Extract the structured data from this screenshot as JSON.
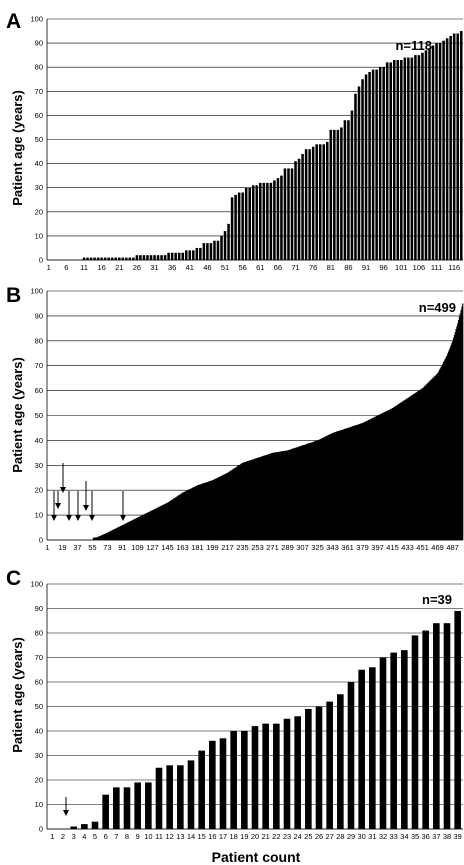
{
  "chart_data": [
    {
      "type": "bar",
      "panel": "A",
      "n_label": "n=118",
      "ylabel": "Patient age (years)",
      "ylim": [
        0,
        100
      ],
      "yticks": [
        0,
        10,
        20,
        30,
        40,
        50,
        60,
        70,
        80,
        90,
        100
      ],
      "xtick_labels": [
        "1",
        "6",
        "11",
        "16",
        "21",
        "26",
        "31",
        "36",
        "41",
        "46",
        "51",
        "56",
        "61",
        "66",
        "71",
        "76",
        "81",
        "86",
        "91",
        "96",
        "101",
        "106",
        "111",
        "116"
      ],
      "grid": true,
      "values": [
        0,
        0,
        0,
        0,
        0,
        0,
        0,
        0,
        0,
        0,
        1,
        1,
        1,
        1,
        1,
        1,
        1,
        1,
        1,
        1,
        1,
        1,
        1,
        1,
        1,
        2,
        2,
        2,
        2,
        2,
        2,
        2,
        2,
        2,
        3,
        3,
        3,
        3,
        3,
        4,
        4,
        4,
        5,
        5,
        7,
        7,
        7,
        8,
        8,
        10,
        12,
        15,
        26,
        27,
        28,
        28,
        30,
        30,
        31,
        31,
        32,
        32,
        32,
        32,
        33,
        34,
        35,
        38,
        38,
        38,
        41,
        42,
        44,
        46,
        46,
        47,
        48,
        48,
        48,
        49,
        54,
        54,
        54,
        55,
        58,
        58,
        62,
        69,
        72,
        75,
        77,
        78,
        79,
        79,
        80,
        80,
        82,
        82,
        83,
        83,
        83,
        84,
        84,
        84,
        85,
        85,
        86,
        87,
        88,
        89,
        90,
        90,
        91,
        92,
        93,
        94,
        94,
        95
      ]
    },
    {
      "type": "bar",
      "panel": "B",
      "n_label": "n=499",
      "ylabel": "Patient age (years)",
      "ylim": [
        0,
        100
      ],
      "yticks": [
        0,
        10,
        20,
        30,
        40,
        50,
        60,
        70,
        80,
        90,
        100
      ],
      "xtick_labels": [
        "1",
        "19",
        "37",
        "55",
        "73",
        "91",
        "109",
        "127",
        "145",
        "163",
        "181",
        "199",
        "217",
        "235",
        "253",
        "271",
        "289",
        "307",
        "325",
        "343",
        "361",
        "379",
        "397",
        "415",
        "433",
        "451",
        "469",
        "487"
      ],
      "grid": true,
      "annotations": "arrows marking patients aged 0",
      "values_curve": [
        [
          1,
          0
        ],
        [
          60,
          1
        ],
        [
          73,
          3
        ],
        [
          91,
          6
        ],
        [
          109,
          9
        ],
        [
          127,
          12
        ],
        [
          145,
          15
        ],
        [
          163,
          19
        ],
        [
          181,
          22
        ],
        [
          199,
          24
        ],
        [
          217,
          27
        ],
        [
          235,
          31
        ],
        [
          253,
          33
        ],
        [
          271,
          35
        ],
        [
          289,
          36
        ],
        [
          307,
          38
        ],
        [
          325,
          40
        ],
        [
          343,
          43
        ],
        [
          361,
          45
        ],
        [
          379,
          47
        ],
        [
          397,
          50
        ],
        [
          415,
          53
        ],
        [
          433,
          57
        ],
        [
          451,
          61
        ],
        [
          469,
          67
        ],
        [
          480,
          74
        ],
        [
          487,
          80
        ],
        [
          493,
          87
        ],
        [
          499,
          95
        ]
      ]
    },
    {
      "type": "bar",
      "panel": "C",
      "n_label": "n=39",
      "ylabel": "Patient age (years)",
      "xlabel": "Patient count",
      "ylim": [
        0,
        100
      ],
      "yticks": [
        0,
        10,
        20,
        30,
        40,
        50,
        60,
        70,
        80,
        90,
        100
      ],
      "categories": [
        "1",
        "2",
        "3",
        "4",
        "5",
        "6",
        "7",
        "8",
        "9",
        "10",
        "11",
        "12",
        "13",
        "14",
        "15",
        "16",
        "17",
        "18",
        "19",
        "20",
        "21",
        "22",
        "23",
        "24",
        "25",
        "26",
        "27",
        "28",
        "29",
        "30",
        "31",
        "32",
        "33",
        "34",
        "35",
        "36",
        "37",
        "38",
        "39"
      ],
      "grid": true,
      "annotations": "arrow at patient 2 (age 0)",
      "values": [
        0,
        0,
        1,
        2,
        3,
        14,
        17,
        17,
        19,
        19,
        25,
        26,
        26,
        28,
        32,
        36,
        37,
        40,
        40,
        42,
        43,
        43,
        45,
        46,
        49,
        50,
        52,
        55,
        60,
        65,
        66,
        70,
        72,
        73,
        79,
        81,
        84,
        84,
        89
      ]
    }
  ]
}
